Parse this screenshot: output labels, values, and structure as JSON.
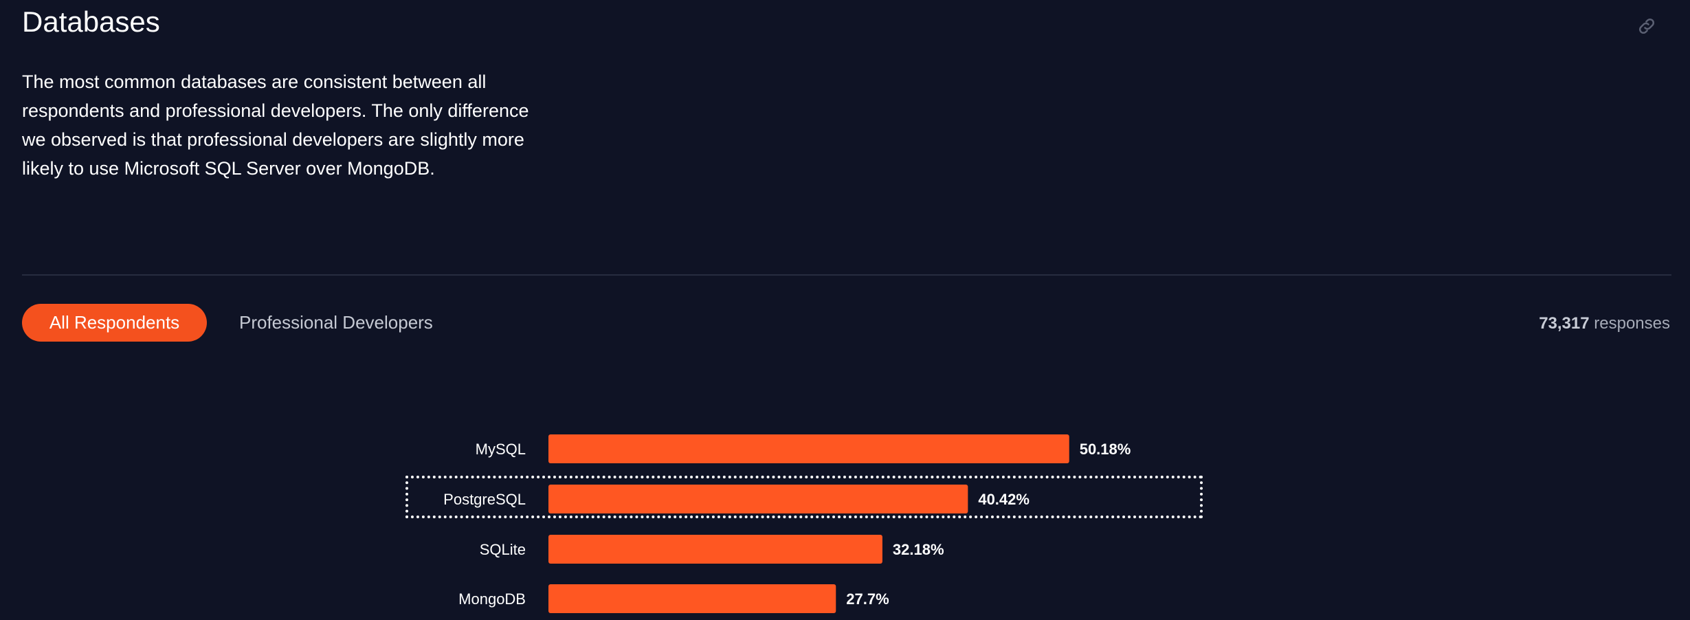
{
  "header": {
    "title": "Databases",
    "link_icon": "link-icon"
  },
  "description": "The most common databases are consistent between all respondents and professional developers. The only difference we observed is that professional developers are slightly more likely to use Microsoft SQL Server over MongoDB.",
  "tabs": [
    {
      "label": "All Respondents",
      "active": true
    },
    {
      "label": "Professional Developers",
      "active": false
    }
  ],
  "responses": {
    "count": "73,317",
    "label": "responses"
  },
  "colors": {
    "background": "#0f1325",
    "accent": "#f4511e",
    "bar": "#ff5722"
  },
  "chart_data": {
    "type": "bar",
    "orientation": "horizontal",
    "categories": [
      "MySQL",
      "PostgreSQL",
      "SQLite",
      "MongoDB"
    ],
    "values": [
      50.18,
      40.42,
      32.18,
      27.7
    ],
    "value_labels": [
      "50.18%",
      "40.42%",
      "32.18%",
      "27.7%"
    ],
    "highlighted_category": "PostgreSQL",
    "xlim": [
      0,
      100
    ],
    "grid": false,
    "legend": "none"
  }
}
